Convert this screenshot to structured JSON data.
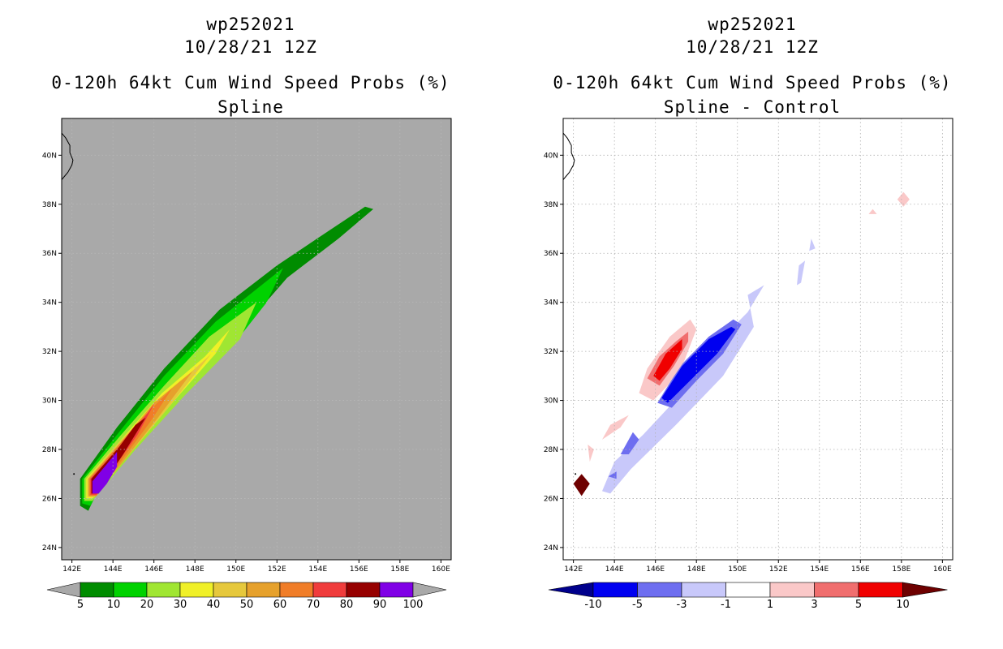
{
  "chart_data": [
    {
      "type": "heatmap",
      "storm_id": "wp252021",
      "date": "10/28/21 12Z",
      "title": "0-120h 64kt Cum Wind Speed Probs (%)",
      "subtitle": "Spline",
      "lon_range": [
        141.5,
        160.5
      ],
      "lat_range": [
        23.5,
        41.5
      ],
      "x_ticks": [
        "142E",
        "144E",
        "146E",
        "148E",
        "150E",
        "152E",
        "154E",
        "156E",
        "158E",
        "160E"
      ],
      "y_ticks": [
        "24N",
        "26N",
        "28N",
        "30N",
        "32N",
        "34N",
        "36N",
        "38N",
        "40N"
      ],
      "background_color": "#a9a9a9",
      "colorbar": {
        "labels": [
          "5",
          "10",
          "20",
          "30",
          "40",
          "50",
          "60",
          "70",
          "80",
          "90",
          "100"
        ],
        "colors": [
          "#008c00",
          "#00d200",
          "#a0e632",
          "#f0f028",
          "#e6c83c",
          "#e6a12c",
          "#f07d28",
          "#f03c3c",
          "#960000",
          "#8000e6"
        ]
      },
      "swath": [
        {
          "level": "5",
          "color": "#008c00",
          "poly": [
            [
              142.4,
              25.7
            ],
            [
              142.4,
              26.8
            ],
            [
              144.2,
              28.9
            ],
            [
              146.5,
              31.3
            ],
            [
              149.2,
              33.7
            ],
            [
              152.0,
              35.5
            ],
            [
              154.5,
              36.9
            ],
            [
              156.3,
              37.9
            ],
            [
              156.7,
              37.8
            ],
            [
              155.0,
              36.6
            ],
            [
              152.5,
              35.0
            ],
            [
              150.0,
              32.6
            ],
            [
              147.0,
              30.2
            ],
            [
              144.0,
              27.6
            ],
            [
              142.8,
              25.5
            ]
          ]
        },
        {
          "level": "10",
          "color": "#00d200",
          "poly": [
            [
              142.5,
              25.8
            ],
            [
              142.5,
              26.8
            ],
            [
              144.2,
              28.6
            ],
            [
              146.5,
              31.0
            ],
            [
              149.0,
              33.2
            ],
            [
              151.7,
              35.0
            ],
            [
              152.3,
              35.4
            ],
            [
              151.5,
              34.0
            ],
            [
              150.0,
              32.4
            ],
            [
              147.0,
              29.9
            ],
            [
              144.0,
              27.4
            ],
            [
              142.9,
              25.7
            ]
          ]
        },
        {
          "level": "20",
          "color": "#a0e632",
          "poly": [
            [
              142.6,
              25.9
            ],
            [
              142.6,
              26.8
            ],
            [
              144.3,
              28.5
            ],
            [
              146.5,
              30.6
            ],
            [
              148.7,
              32.6
            ],
            [
              151.0,
              34.0
            ],
            [
              150.2,
              32.5
            ],
            [
              147.5,
              30.2
            ],
            [
              145.0,
              27.9
            ],
            [
              143.0,
              25.9
            ]
          ]
        },
        {
          "level": "30",
          "color": "#f0f028",
          "poly": [
            [
              142.7,
              26.0
            ],
            [
              142.7,
              26.8
            ],
            [
              144.3,
              28.3
            ],
            [
              146.4,
              30.3
            ],
            [
              148.5,
              31.8
            ],
            [
              149.7,
              32.9
            ],
            [
              149.0,
              31.9
            ],
            [
              147.0,
              30.0
            ],
            [
              144.8,
              27.8
            ],
            [
              143.0,
              26.0
            ]
          ]
        },
        {
          "level": "40",
          "color": "#e6c83c",
          "poly": [
            [
              142.75,
              26.05
            ],
            [
              142.75,
              26.8
            ],
            [
              144.3,
              28.3
            ],
            [
              146.3,
              30.0
            ],
            [
              148.0,
              31.3
            ],
            [
              148.8,
              31.9
            ],
            [
              146.8,
              29.8
            ],
            [
              144.6,
              27.6
            ],
            [
              143.1,
              26.05
            ]
          ]
        },
        {
          "level": "50",
          "color": "#e6a12c",
          "poly": [
            [
              142.8,
              26.1
            ],
            [
              142.8,
              26.8
            ],
            [
              144.3,
              28.2
            ],
            [
              146.0,
              29.9
            ],
            [
              147.3,
              30.8
            ],
            [
              147.9,
              31.2
            ],
            [
              146.2,
              29.3
            ],
            [
              144.4,
              27.4
            ],
            [
              143.1,
              26.1
            ]
          ]
        },
        {
          "level": "60",
          "color": "#f07d28",
          "poly": [
            [
              142.85,
              26.1
            ],
            [
              142.85,
              26.8
            ],
            [
              144.3,
              28.2
            ],
            [
              145.8,
              29.6
            ],
            [
              146.9,
              30.5
            ],
            [
              145.8,
              29.1
            ],
            [
              144.2,
              27.3
            ],
            [
              143.2,
              26.1
            ]
          ]
        },
        {
          "level": "70",
          "color": "#f03c3c",
          "poly": [
            [
              142.9,
              26.15
            ],
            [
              142.9,
              26.8
            ],
            [
              144.3,
              28.1
            ],
            [
              145.7,
              29.5
            ],
            [
              146.1,
              30.0
            ],
            [
              145.2,
              28.6
            ],
            [
              144.0,
              27.2
            ],
            [
              143.2,
              26.15
            ]
          ]
        },
        {
          "level": "80",
          "color": "#960000",
          "poly": [
            [
              142.95,
              26.2
            ],
            [
              142.95,
              26.8
            ],
            [
              144.3,
              28.1
            ],
            [
              145.1,
              29.0
            ],
            [
              145.6,
              29.3
            ],
            [
              144.5,
              27.8
            ],
            [
              143.7,
              26.8
            ],
            [
              143.3,
              26.2
            ]
          ]
        },
        {
          "level": "90",
          "color": "#8000e6",
          "poly": [
            [
              143.0,
              26.2
            ],
            [
              143.0,
              26.7
            ],
            [
              143.8,
              27.5
            ],
            [
              144.2,
              27.9
            ],
            [
              144.2,
              27.3
            ],
            [
              143.7,
              26.6
            ],
            [
              143.3,
              26.2
            ]
          ]
        }
      ]
    },
    {
      "type": "heatmap",
      "storm_id": "wp252021",
      "date": "10/28/21 12Z",
      "title": "0-120h 64kt Cum Wind Speed Probs (%)",
      "subtitle": "Spline - Control",
      "lon_range": [
        141.5,
        160.5
      ],
      "lat_range": [
        23.5,
        41.5
      ],
      "x_ticks": [
        "142E",
        "144E",
        "146E",
        "148E",
        "150E",
        "152E",
        "154E",
        "156E",
        "158E",
        "160E"
      ],
      "y_ticks": [
        "24N",
        "26N",
        "28N",
        "30N",
        "32N",
        "34N",
        "36N",
        "38N",
        "40N"
      ],
      "background_color": "#ffffff",
      "colorbar": {
        "labels": [
          "-10",
          "-5",
          "-3",
          "-1",
          "1",
          "3",
          "5",
          "10"
        ],
        "colors": [
          "#00008c",
          "#0000f0",
          "#6e6ef0",
          "#c8c8fa",
          "#ffffff",
          "#fac8c8",
          "#f06e6e",
          "#f00000",
          "#6e0000"
        ]
      },
      "diff_regions": [
        {
          "level": "-1 to -3",
          "color": "#c8c8fa",
          "poly": [
            [
              143.4,
              26.3
            ],
            [
              144.0,
              27.5
            ],
            [
              145.4,
              28.6
            ],
            [
              147.3,
              30.3
            ],
            [
              149.2,
              32.5
            ],
            [
              150.5,
              33.6
            ],
            [
              151.3,
              34.7
            ],
            [
              150.5,
              34.3
            ],
            [
              150.8,
              33.0
            ],
            [
              149.3,
              31.0
            ],
            [
              147.0,
              29.0
            ],
            [
              144.8,
              27.2
            ],
            [
              143.8,
              26.2
            ]
          ]
        },
        {
          "level": "-1 to -3",
          "color": "#c8c8fa",
          "poly": [
            [
              152.9,
              34.7
            ],
            [
              153.0,
              35.5
            ],
            [
              153.3,
              35.7
            ],
            [
              153.1,
              34.8
            ]
          ]
        },
        {
          "level": "-1 to -3",
          "color": "#c8c8fa",
          "poly": [
            [
              153.5,
              36.1
            ],
            [
              153.6,
              36.6
            ],
            [
              153.8,
              36.2
            ]
          ]
        },
        {
          "level": "-3 to -5",
          "color": "#6e6ef0",
          "poly": [
            [
              146.1,
              29.9
            ],
            [
              147.2,
              31.4
            ],
            [
              148.6,
              32.6
            ],
            [
              149.8,
              33.3
            ],
            [
              150.2,
              33.1
            ],
            [
              149.3,
              31.9
            ],
            [
              148.0,
              30.8
            ],
            [
              146.8,
              29.7
            ]
          ]
        },
        {
          "level": "-3 to -5",
          "color": "#6e6ef0",
          "poly": [
            [
              144.3,
              27.8
            ],
            [
              144.9,
              28.7
            ],
            [
              145.2,
              28.4
            ],
            [
              144.7,
              27.8
            ]
          ]
        },
        {
          "level": "-3 to -5",
          "color": "#6e6ef0",
          "poly": [
            [
              143.7,
              26.9
            ],
            [
              144.1,
              27.1
            ],
            [
              144.1,
              26.8
            ]
          ]
        },
        {
          "level": "-5 to -10",
          "color": "#0000f0",
          "poly": [
            [
              146.3,
              30.1
            ],
            [
              147.3,
              31.4
            ],
            [
              148.6,
              32.5
            ],
            [
              149.7,
              33.0
            ],
            [
              149.9,
              32.9
            ],
            [
              149.0,
              31.9
            ],
            [
              147.8,
              30.9
            ],
            [
              146.6,
              29.9
            ]
          ]
        },
        {
          "level": "1 to 3",
          "color": "#fac8c8",
          "poly": [
            [
              145.2,
              30.3
            ],
            [
              145.6,
              31.3
            ],
            [
              146.7,
              32.6
            ],
            [
              147.7,
              33.3
            ],
            [
              148.0,
              32.9
            ],
            [
              147.4,
              31.6
            ],
            [
              146.6,
              30.6
            ],
            [
              145.9,
              30.0
            ]
          ]
        },
        {
          "level": "1 to 3",
          "color": "#fac8c8",
          "poly": [
            [
              143.4,
              28.4
            ],
            [
              143.8,
              29.0
            ],
            [
              144.7,
              29.4
            ],
            [
              144.3,
              28.9
            ]
          ]
        },
        {
          "level": "1 to 3",
          "color": "#fac8c8",
          "poly": [
            [
              142.8,
              27.5
            ],
            [
              142.7,
              28.2
            ],
            [
              143.0,
              28.0
            ]
          ]
        },
        {
          "level": "1 to 3",
          "color": "#fac8c8",
          "poly": [
            [
              156.4,
              37.6
            ],
            [
              156.6,
              37.8
            ],
            [
              156.8,
              37.6
            ]
          ]
        },
        {
          "level": "1 to 3",
          "color": "#fac8c8",
          "poly": [
            [
              157.8,
              38.2
            ],
            [
              158.1,
              38.5
            ],
            [
              158.4,
              38.2
            ],
            [
              158.1,
              37.9
            ]
          ]
        },
        {
          "level": "3 to 5",
          "color": "#f06e6e",
          "poly": [
            [
              145.6,
              30.9
            ],
            [
              146.2,
              31.8
            ],
            [
              147.0,
              32.4
            ],
            [
              147.6,
              32.8
            ],
            [
              147.6,
              32.4
            ],
            [
              146.9,
              31.4
            ],
            [
              146.2,
              30.6
            ]
          ]
        },
        {
          "level": "5 to 10",
          "color": "#f00000",
          "poly": [
            [
              145.9,
              31.0
            ],
            [
              146.5,
              31.9
            ],
            [
              147.3,
              32.5
            ],
            [
              147.3,
              32.1
            ],
            [
              146.7,
              31.3
            ],
            [
              146.2,
              30.8
            ]
          ]
        },
        {
          "level": ">10",
          "color": "#6e0000",
          "poly": [
            [
              142.0,
              26.6
            ],
            [
              142.4,
              27.0
            ],
            [
              142.8,
              26.6
            ],
            [
              142.4,
              26.1
            ]
          ]
        }
      ]
    }
  ]
}
